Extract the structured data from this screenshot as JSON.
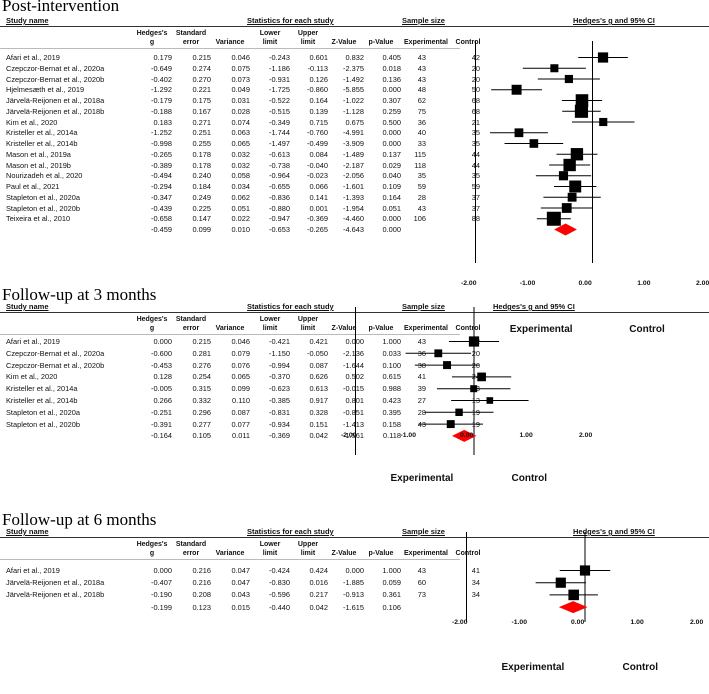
{
  "columns": {
    "study_name": "Study name",
    "stats_header": "Statistics for each study",
    "sample_header": "Sample size",
    "plot_header": "Hedges's g and 95% CI",
    "hedges_g": [
      "Hedges's",
      "g"
    ],
    "std_error": [
      "Standard",
      "error"
    ],
    "variance": "Variance",
    "lower_limit": [
      "Lower",
      "limit"
    ],
    "upper_limit": [
      "Upper",
      "limit"
    ],
    "z_value": "Z-Value",
    "p_value": "p-Value",
    "experimental": "Experimental",
    "control": "Control"
  },
  "favours": {
    "left": "Experimental",
    "right": "Control"
  },
  "colors": {
    "square": "#000000",
    "diamond": "#ff0000",
    "line": "#000000"
  },
  "chart_data": [
    {
      "type": "forest",
      "title": "Post-intervention",
      "xlim": [
        -2,
        2
      ],
      "ticks": [
        "-2.00",
        "-1.00",
        "0.00",
        "1.00",
        "2.00"
      ],
      "studies": [
        {
          "name": "Afari et al., 2019",
          "g": "0.179",
          "se": "0.215",
          "var": "0.046",
          "ll": "-0.243",
          "ul": "0.601",
          "z": "0.832",
          "p": "0.405",
          "exp": "43",
          "ctrl": "42"
        },
        {
          "name": "Czepczor-Bernat et al., 2020a",
          "g": "-0.649",
          "se": "0.274",
          "var": "0.075",
          "ll": "-1.186",
          "ul": "-0.113",
          "z": "-2.375",
          "p": "0.018",
          "exp": "43",
          "ctrl": "20"
        },
        {
          "name": "Czepczor-Bernat et al., 2020b",
          "g": "-0.402",
          "se": "0.270",
          "var": "0.073",
          "ll": "-0.931",
          "ul": "0.126",
          "z": "-1.492",
          "p": "0.136",
          "exp": "43",
          "ctrl": "20"
        },
        {
          "name": "Hjelmesæth et al., 2019",
          "g": "-1.292",
          "se": "0.221",
          "var": "0.049",
          "ll": "-1.725",
          "ul": "-0.860",
          "z": "-5.855",
          "p": "0.000",
          "exp": "48",
          "ctrl": "50"
        },
        {
          "name": "Järvelä-Reijonen et al., 2018a",
          "g": "-0.179",
          "se": "0.175",
          "var": "0.031",
          "ll": "-0.522",
          "ul": "0.164",
          "z": "-1.022",
          "p": "0.307",
          "exp": "62",
          "ctrl": "68"
        },
        {
          "name": "Järvelä-Reijonen et al., 2018b",
          "g": "-0.188",
          "se": "0.167",
          "var": "0.028",
          "ll": "-0.515",
          "ul": "0.139",
          "z": "-1.128",
          "p": "0.259",
          "exp": "75",
          "ctrl": "68"
        },
        {
          "name": "Kim et al., 2020",
          "g": "0.183",
          "se": "0.271",
          "var": "0.074",
          "ll": "-0.349",
          "ul": "0.715",
          "z": "0.675",
          "p": "0.500",
          "exp": "36",
          "ctrl": "21"
        },
        {
          "name": "Kristeller et al., 2014a",
          "g": "-1.252",
          "se": "0.251",
          "var": "0.063",
          "ll": "-1.744",
          "ul": "-0.760",
          "z": "-4.991",
          "p": "0.000",
          "exp": "40",
          "ctrl": "35"
        },
        {
          "name": "Kristeller et al., 2014b",
          "g": "-0.998",
          "se": "0.255",
          "var": "0.065",
          "ll": "-1.497",
          "ul": "-0.499",
          "z": "-3.909",
          "p": "0.000",
          "exp": "33",
          "ctrl": "35"
        },
        {
          "name": "Mason et al., 2019a",
          "g": "-0.265",
          "se": "0.178",
          "var": "0.032",
          "ll": "-0.613",
          "ul": "0.084",
          "z": "-1.489",
          "p": "0.137",
          "exp": "115",
          "ctrl": "44"
        },
        {
          "name": "Mason et al., 2019b",
          "g": "-0.389",
          "se": "0.178",
          "var": "0.032",
          "ll": "-0.738",
          "ul": "-0.040",
          "z": "-2.187",
          "p": "0.029",
          "exp": "118",
          "ctrl": "44"
        },
        {
          "name": "Nourizadeh et al., 2020",
          "g": "-0.494",
          "se": "0.240",
          "var": "0.058",
          "ll": "-0.964",
          "ul": "-0.023",
          "z": "-2.056",
          "p": "0.040",
          "exp": "35",
          "ctrl": "35"
        },
        {
          "name": "Paul et al., 2021",
          "g": "-0.294",
          "se": "0.184",
          "var": "0.034",
          "ll": "-0.655",
          "ul": "0.066",
          "z": "-1.601",
          "p": "0.109",
          "exp": "59",
          "ctrl": "59"
        },
        {
          "name": "Stapleton et al., 2020a",
          "g": "-0.347",
          "se": "0.249",
          "var": "0.062",
          "ll": "-0.836",
          "ul": "0.141",
          "z": "-1.393",
          "p": "0.164",
          "exp": "28",
          "ctrl": "37"
        },
        {
          "name": "Stapleton et al., 2020b",
          "g": "-0.439",
          "se": "0.225",
          "var": "0.051",
          "ll": "-0.880",
          "ul": "0.001",
          "z": "-1.954",
          "p": "0.051",
          "exp": "43",
          "ctrl": "37"
        },
        {
          "name": "Teixeira et al., 2010",
          "g": "-0.658",
          "se": "0.147",
          "var": "0.022",
          "ll": "-0.947",
          "ul": "-0.369",
          "z": "-4.460",
          "p": "0.000",
          "exp": "106",
          "ctrl": "88"
        }
      ],
      "summary": {
        "g": "-0.459",
        "se": "0.099",
        "var": "0.010",
        "ll": "-0.653",
        "ul": "-0.265",
        "z": "-4.643",
        "p": "0.000"
      }
    },
    {
      "type": "forest",
      "title": "Follow-up at 3 months",
      "xlim": [
        -2,
        2
      ],
      "ticks": [
        "-2.00",
        "-1.00",
        "0.00",
        "1.00",
        "2.00"
      ],
      "studies": [
        {
          "name": "Afari et al., 2019",
          "g": "0.000",
          "se": "0.215",
          "var": "0.046",
          "ll": "-0.421",
          "ul": "0.421",
          "z": "0.000",
          "p": "1.000",
          "exp": "43",
          "ctrl": "42"
        },
        {
          "name": "Czepczor-Bernat et al., 2020a",
          "g": "-0.600",
          "se": "0.281",
          "var": "0.079",
          "ll": "-1.150",
          "ul": "-0.050",
          "z": "-2.136",
          "p": "0.033",
          "exp": "36",
          "ctrl": "20"
        },
        {
          "name": "Czepczor-Bernat et al., 2020b",
          "g": "-0.453",
          "se": "0.276",
          "var": "0.076",
          "ll": "-0.994",
          "ul": "0.087",
          "z": "-1.644",
          "p": "0.100",
          "exp": "38",
          "ctrl": "20"
        },
        {
          "name": "Kim et al., 2020",
          "g": "0.128",
          "se": "0.254",
          "var": "0.065",
          "ll": "-0.370",
          "ul": "0.626",
          "z": "0.502",
          "p": "0.615",
          "exp": "41",
          "ctrl": "24"
        },
        {
          "name": "Kristeller et al., 2014a",
          "g": "-0.005",
          "se": "0.315",
          "var": "0.099",
          "ll": "-0.623",
          "ul": "0.613",
          "z": "-0.015",
          "p": "0.988",
          "exp": "39",
          "ctrl": "13"
        },
        {
          "name": "Kristeller et al., 2014b",
          "g": "0.266",
          "se": "0.332",
          "var": "0.110",
          "ll": "-0.385",
          "ul": "0.917",
          "z": "0.801",
          "p": "0.423",
          "exp": "27",
          "ctrl": "13"
        },
        {
          "name": "Stapleton et al., 2020a",
          "g": "-0.251",
          "se": "0.296",
          "var": "0.087",
          "ll": "-0.831",
          "ul": "0.328",
          "z": "-0.851",
          "p": "0.395",
          "exp": "28",
          "ctrl": "19"
        },
        {
          "name": "Stapleton et al., 2020b",
          "g": "-0.391",
          "se": "0.277",
          "var": "0.077",
          "ll": "-0.934",
          "ul": "0.151",
          "z": "-1.413",
          "p": "0.158",
          "exp": "43",
          "ctrl": "19"
        }
      ],
      "summary": {
        "g": "-0.164",
        "se": "0.105",
        "var": "0.011",
        "ll": "-0.369",
        "ul": "0.042",
        "z": "-1.561",
        "p": "0.118"
      }
    },
    {
      "type": "forest",
      "title": "Follow-up at 6 months",
      "xlim": [
        -2,
        2
      ],
      "ticks": [
        "-2.00",
        "-1.00",
        "0.00",
        "1.00",
        "2.00"
      ],
      "studies": [
        {
          "name": "Afari et al., 2019",
          "g": "0.000",
          "se": "0.216",
          "var": "0.047",
          "ll": "-0.424",
          "ul": "0.424",
          "z": "0.000",
          "p": "1.000",
          "exp": "43",
          "ctrl": "41"
        },
        {
          "name": "Järvelä-Reijonen et al., 2018a",
          "g": "-0.407",
          "se": "0.216",
          "var": "0.047",
          "ll": "-0.830",
          "ul": "0.016",
          "z": "-1.885",
          "p": "0.059",
          "exp": "60",
          "ctrl": "34"
        },
        {
          "name": "Järvelä-Reijonen et al., 2018b",
          "g": "-0.190",
          "se": "0.208",
          "var": "0.043",
          "ll": "-0.596",
          "ul": "0.217",
          "z": "-0.913",
          "p": "0.361",
          "exp": "73",
          "ctrl": "34"
        }
      ],
      "summary": {
        "g": "-0.199",
        "se": "0.123",
        "var": "0.015",
        "ll": "-0.440",
        "ul": "0.042",
        "z": "-1.615",
        "p": "0.106"
      }
    }
  ]
}
